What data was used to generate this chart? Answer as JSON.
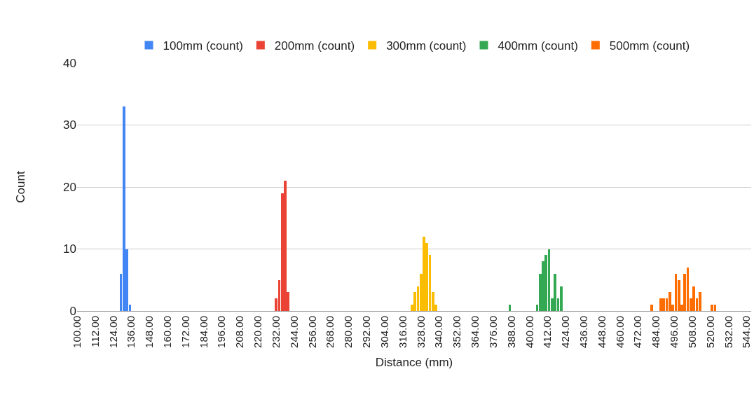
{
  "chart_data": {
    "type": "bar",
    "xlabel": "Distance (mm)",
    "ylabel": "Count",
    "xlim": [
      100,
      547
    ],
    "xticks": [
      {
        "value": 100,
        "label": "100.00"
      },
      {
        "value": 112,
        "label": "112.00"
      },
      {
        "value": 124,
        "label": "124.00"
      },
      {
        "value": 136,
        "label": "136.00"
      },
      {
        "value": 148,
        "label": "148.00"
      },
      {
        "value": 160,
        "label": "160.00"
      },
      {
        "value": 172,
        "label": "172.00"
      },
      {
        "value": 184,
        "label": "184.00"
      },
      {
        "value": 196,
        "label": "196.00"
      },
      {
        "value": 208,
        "label": "208.00"
      },
      {
        "value": 220,
        "label": "220.00"
      },
      {
        "value": 232,
        "label": "232.00"
      },
      {
        "value": 244,
        "label": "244.00"
      },
      {
        "value": 256,
        "label": "256.00"
      },
      {
        "value": 268,
        "label": "268.00"
      },
      {
        "value": 280,
        "label": "280.00"
      },
      {
        "value": 292,
        "label": "292.00"
      },
      {
        "value": 304,
        "label": "304.00"
      },
      {
        "value": 316,
        "label": "316.00"
      },
      {
        "value": 328,
        "label": "328.00"
      },
      {
        "value": 340,
        "label": "340.00"
      },
      {
        "value": 352,
        "label": "352.00"
      },
      {
        "value": 364,
        "label": "364.00"
      },
      {
        "value": 376,
        "label": "376.00"
      },
      {
        "value": 388,
        "label": "388.00"
      },
      {
        "value": 400,
        "label": "400.00"
      },
      {
        "value": 412,
        "label": "412.00"
      },
      {
        "value": 424,
        "label": "424.00"
      },
      {
        "value": 436,
        "label": "436.00"
      },
      {
        "value": 448,
        "label": "448.00"
      },
      {
        "value": 460,
        "label": "460.00"
      },
      {
        "value": 472,
        "label": "472.00"
      },
      {
        "value": 484,
        "label": "484.00"
      },
      {
        "value": 496,
        "label": "496.00"
      },
      {
        "value": 508,
        "label": "508.00"
      },
      {
        "value": 520,
        "label": "520.00"
      },
      {
        "value": 532,
        "label": "532.00"
      },
      {
        "value": 544,
        "label": "544.00"
      }
    ],
    "ylim": [
      0,
      40
    ],
    "yticks": [
      0,
      10,
      20,
      30,
      40
    ],
    "grid": "y",
    "legend": "top",
    "series": [
      {
        "name": "100mm (count)",
        "color": "#4285f4",
        "x": [
          129,
          131,
          133,
          135
        ],
        "values": [
          6,
          33,
          10,
          1
        ]
      },
      {
        "name": "200mm (count)",
        "color": "#ea4335",
        "x": [
          232,
          234,
          236,
          238,
          240
        ],
        "values": [
          2,
          5,
          19,
          21,
          3
        ]
      },
      {
        "name": "300mm (count)",
        "color": "#fbbc04",
        "x": [
          322,
          324,
          326,
          328,
          330,
          332,
          334,
          336,
          338
        ],
        "values": [
          1,
          3,
          4,
          6,
          12,
          11,
          9,
          3,
          1
        ]
      },
      {
        "name": "400mm (count)",
        "color": "#34a853",
        "x": [
          387,
          405,
          407,
          409,
          411,
          413,
          415,
          417,
          419,
          421
        ],
        "values": [
          1,
          1,
          6,
          8,
          9,
          10,
          2,
          6,
          2,
          4
        ]
      },
      {
        "name": "500mm (count)",
        "color": "#ff6d01",
        "x": [
          481,
          487,
          489,
          491,
          493,
          495,
          497,
          499,
          501,
          503,
          505,
          507,
          509,
          511,
          513,
          521,
          523
        ],
        "values": [
          1,
          2,
          2,
          2,
          3,
          1,
          6,
          5,
          1,
          6,
          7,
          2,
          4,
          2,
          3,
          1,
          1
        ]
      }
    ]
  }
}
